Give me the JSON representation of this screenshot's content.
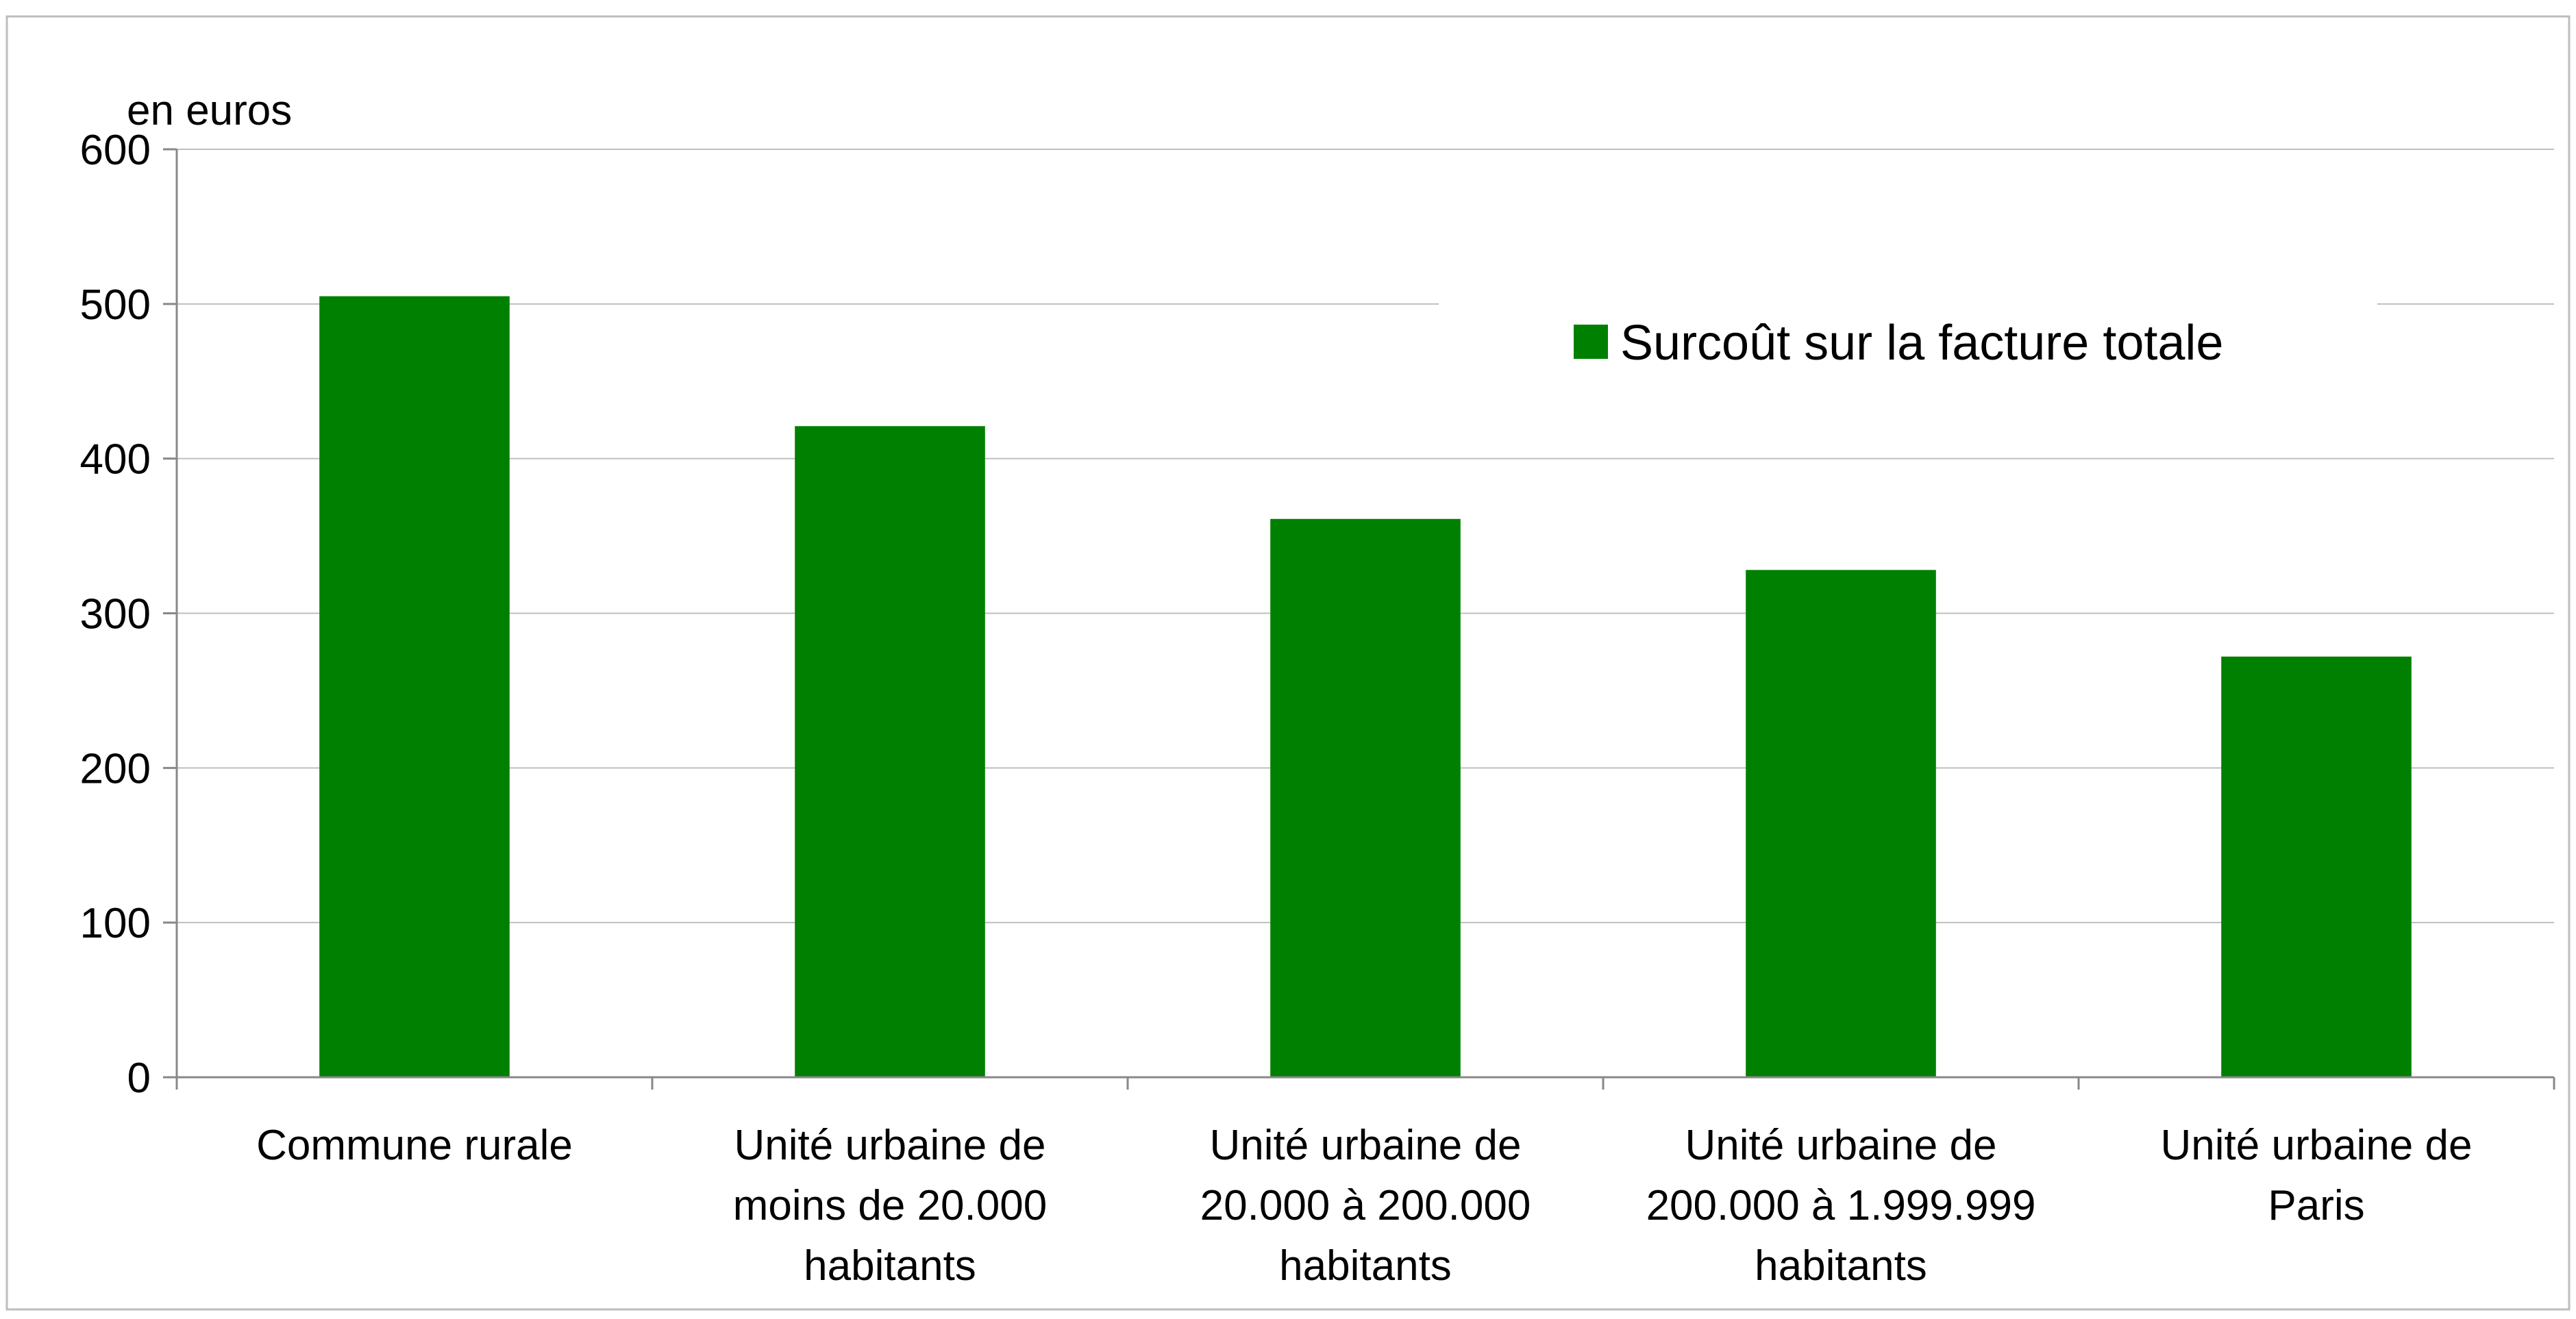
{
  "chart_data": {
    "type": "bar",
    "ylabel": "en euros",
    "categories": [
      [
        "Commune rurale"
      ],
      [
        "Unité urbaine de",
        "moins de 20.000",
        "habitants"
      ],
      [
        "Unité urbaine de",
        "20.000 à 200.000",
        "habitants"
      ],
      [
        "Unité urbaine de",
        "200.000 à 1.999.999",
        "habitants"
      ],
      [
        "Unité urbaine de",
        "Paris"
      ]
    ],
    "series": [
      {
        "name": "Surcoût sur la facture totale",
        "color": "#008000",
        "values": [
          505,
          421,
          361,
          328,
          272
        ]
      }
    ],
    "ylim": [
      0,
      600
    ],
    "yticks": [
      0,
      100,
      200,
      300,
      400,
      500,
      600
    ],
    "grid": true,
    "legend_position": "top-right"
  }
}
